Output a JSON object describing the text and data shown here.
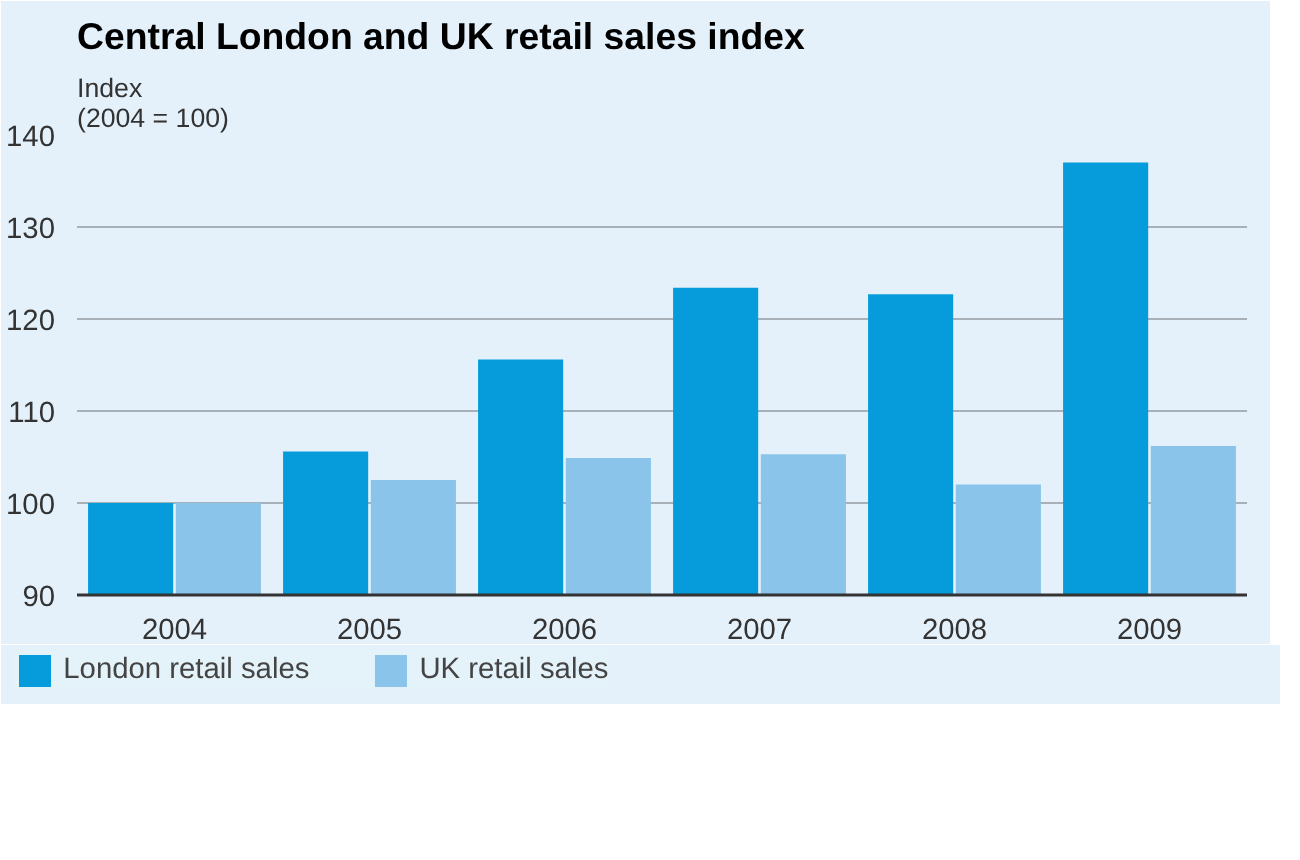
{
  "chart_data": {
    "type": "bar",
    "title": "Central London and UK retail sales index",
    "ylabel": "Index\n(2004 = 100)",
    "categories": [
      "2004",
      "2005",
      "2006",
      "2007",
      "2008",
      "2009"
    ],
    "series": [
      {
        "name": "London retail sales",
        "color": "#069cdb",
        "values": [
          100,
          105.6,
          115.6,
          123.4,
          122.7,
          137.0
        ]
      },
      {
        "name": "UK retail sales",
        "color": "#8ac4ea",
        "values": [
          100,
          102.5,
          104.9,
          105.3,
          102.0,
          106.2
        ]
      }
    ],
    "ylim": [
      90,
      140
    ],
    "yticks": [
      90,
      100,
      110,
      120,
      130,
      140
    ],
    "grid": "y",
    "legend": "bottom"
  }
}
